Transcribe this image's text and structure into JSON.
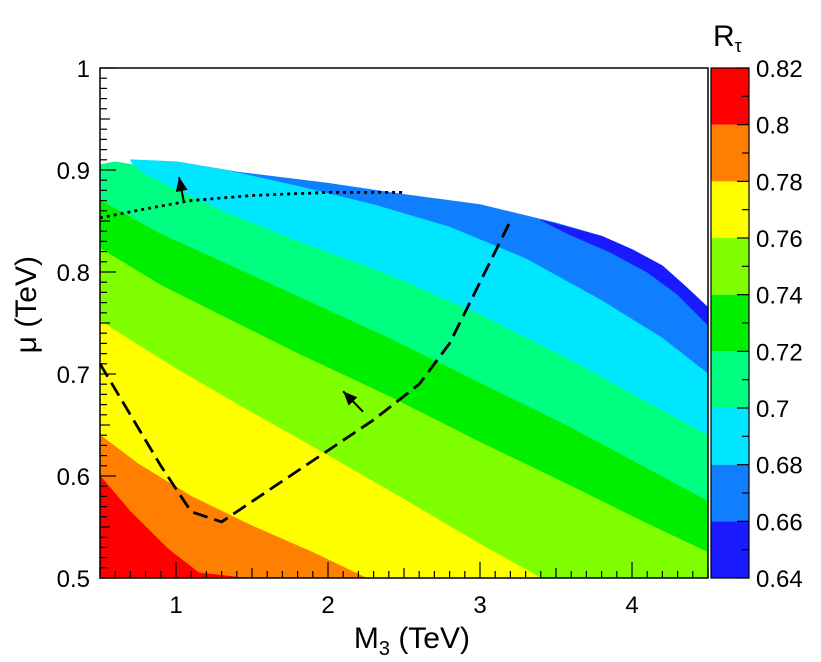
{
  "chart_data": {
    "type": "heatmap",
    "title": "",
    "xlabel": {
      "main": "M",
      "sub": "3",
      "unit": " (TeV)"
    },
    "ylabel": {
      "main": "μ",
      "unit": " (TeV)"
    },
    "colorbar_label": {
      "main": "R",
      "sub": "τ"
    },
    "xlim": [
      0.5,
      4.5
    ],
    "ylim": [
      0.5,
      1.0
    ],
    "x_ticks": [
      {
        "value": 1,
        "label": "1"
      },
      {
        "value": 2,
        "label": "2"
      },
      {
        "value": 3,
        "label": "3"
      },
      {
        "value": 4,
        "label": "4"
      }
    ],
    "y_ticks": [
      {
        "value": 0.5,
        "label": "0.5"
      },
      {
        "value": 0.6,
        "label": "0.6"
      },
      {
        "value": 0.7,
        "label": "0.7"
      },
      {
        "value": 0.8,
        "label": "0.8"
      },
      {
        "value": 0.9,
        "label": "0.9"
      },
      {
        "value": 1.0,
        "label": "1"
      }
    ],
    "colorbar": {
      "range": [
        0.64,
        0.82
      ],
      "tick_labels": [
        "0.82",
        "0.8",
        "0.78",
        "0.76",
        "0.74",
        "0.72",
        "0.7",
        "0.68",
        "0.66",
        "0.64"
      ],
      "bands": [
        {
          "from": 0.64,
          "to": 0.66,
          "color": "#1a1aff"
        },
        {
          "from": 0.66,
          "to": 0.68,
          "color": "#0f7fff"
        },
        {
          "from": 0.68,
          "to": 0.7,
          "color": "#00e6ff"
        },
        {
          "from": 0.7,
          "to": 0.72,
          "color": "#00ff80"
        },
        {
          "from": 0.72,
          "to": 0.74,
          "color": "#00ee00"
        },
        {
          "from": 0.74,
          "to": 0.76,
          "color": "#80ff00"
        },
        {
          "from": 0.76,
          "to": 0.78,
          "color": "#ffff00"
        },
        {
          "from": 0.78,
          "to": 0.8,
          "color": "#ff8000"
        },
        {
          "from": 0.8,
          "to": 0.82,
          "color": "#ff0000"
        }
      ]
    },
    "allowed_region_upper_edge": [
      {
        "x": 0.5,
        "y": 0.905
      },
      {
        "x": 0.8,
        "y": 0.91
      },
      {
        "x": 1.0,
        "y": 0.908
      },
      {
        "x": 1.5,
        "y": 0.897
      },
      {
        "x": 2.0,
        "y": 0.887
      },
      {
        "x": 2.5,
        "y": 0.876
      },
      {
        "x": 3.0,
        "y": 0.865
      },
      {
        "x": 3.5,
        "y": 0.848
      },
      {
        "x": 3.8,
        "y": 0.835
      },
      {
        "x": 4.0,
        "y": 0.822
      },
      {
        "x": 4.2,
        "y": 0.805
      },
      {
        "x": 4.35,
        "y": 0.786
      },
      {
        "x": 4.5,
        "y": 0.762
      }
    ],
    "contour_bands": [
      {
        "color": "#0f7fff",
        "points": [
          {
            "x": 1.0,
            "y": 0.908
          },
          {
            "x": 1.4,
            "y": 0.898
          },
          {
            "x": 2.0,
            "y": 0.887
          },
          {
            "x": 2.5,
            "y": 0.876
          },
          {
            "x": 3.0,
            "y": 0.866
          },
          {
            "x": 3.5,
            "y": 0.848
          },
          {
            "x": 3.8,
            "y": 0.835
          },
          {
            "x": 4.0,
            "y": 0.822
          },
          {
            "x": 4.2,
            "y": 0.806
          },
          {
            "x": 4.35,
            "y": 0.786
          },
          {
            "x": 4.5,
            "y": 0.765
          },
          {
            "x": 4.5,
            "y": 0.7
          },
          {
            "x": 4.2,
            "y": 0.735
          },
          {
            "x": 3.8,
            "y": 0.772
          },
          {
            "x": 3.3,
            "y": 0.813
          },
          {
            "x": 2.8,
            "y": 0.844
          },
          {
            "x": 2.3,
            "y": 0.866
          },
          {
            "x": 1.8,
            "y": 0.884
          },
          {
            "x": 1.35,
            "y": 0.899
          }
        ]
      },
      {
        "color": "#00e6ff",
        "points": [
          {
            "x": 0.7,
            "y": 0.91
          },
          {
            "x": 1.0,
            "y": 0.908
          },
          {
            "x": 1.35,
            "y": 0.899
          },
          {
            "x": 1.8,
            "y": 0.884
          },
          {
            "x": 2.3,
            "y": 0.866
          },
          {
            "x": 2.8,
            "y": 0.844
          },
          {
            "x": 3.3,
            "y": 0.813
          },
          {
            "x": 3.8,
            "y": 0.772
          },
          {
            "x": 4.2,
            "y": 0.735
          },
          {
            "x": 4.5,
            "y": 0.7
          },
          {
            "x": 4.5,
            "y": 0.64
          },
          {
            "x": 4.1,
            "y": 0.672
          },
          {
            "x": 3.6,
            "y": 0.713
          },
          {
            "x": 3.0,
            "y": 0.758
          },
          {
            "x": 2.4,
            "y": 0.797
          },
          {
            "x": 1.8,
            "y": 0.83
          },
          {
            "x": 1.3,
            "y": 0.86
          },
          {
            "x": 0.95,
            "y": 0.884
          },
          {
            "x": 0.78,
            "y": 0.897
          },
          {
            "x": 0.72,
            "y": 0.905
          }
        ]
      },
      {
        "color": "#00ff80",
        "points": [
          {
            "x": 0.5,
            "y": 0.905
          },
          {
            "x": 0.6,
            "y": 0.908
          },
          {
            "x": 0.72,
            "y": 0.905
          },
          {
            "x": 0.78,
            "y": 0.897
          },
          {
            "x": 0.95,
            "y": 0.884
          },
          {
            "x": 1.3,
            "y": 0.86
          },
          {
            "x": 1.8,
            "y": 0.83
          },
          {
            "x": 2.4,
            "y": 0.797
          },
          {
            "x": 3.0,
            "y": 0.758
          },
          {
            "x": 3.6,
            "y": 0.713
          },
          {
            "x": 4.1,
            "y": 0.672
          },
          {
            "x": 4.5,
            "y": 0.64
          },
          {
            "x": 4.5,
            "y": 0.575
          },
          {
            "x": 4.1,
            "y": 0.607
          },
          {
            "x": 3.6,
            "y": 0.647
          },
          {
            "x": 3.0,
            "y": 0.691
          },
          {
            "x": 2.4,
            "y": 0.735
          },
          {
            "x": 1.8,
            "y": 0.776
          },
          {
            "x": 1.3,
            "y": 0.81
          },
          {
            "x": 0.9,
            "y": 0.837
          },
          {
            "x": 0.6,
            "y": 0.862
          },
          {
            "x": 0.5,
            "y": 0.87
          }
        ]
      },
      {
        "color": "#00ee00",
        "points": [
          {
            "x": 0.5,
            "y": 0.87
          },
          {
            "x": 0.6,
            "y": 0.862
          },
          {
            "x": 0.9,
            "y": 0.837
          },
          {
            "x": 1.3,
            "y": 0.81
          },
          {
            "x": 1.8,
            "y": 0.776
          },
          {
            "x": 2.4,
            "y": 0.735
          },
          {
            "x": 3.0,
            "y": 0.691
          },
          {
            "x": 3.6,
            "y": 0.647
          },
          {
            "x": 4.1,
            "y": 0.607
          },
          {
            "x": 4.5,
            "y": 0.575
          },
          {
            "x": 4.5,
            "y": 0.525
          },
          {
            "x": 4.1,
            "y": 0.553
          },
          {
            "x": 3.6,
            "y": 0.59
          },
          {
            "x": 3.0,
            "y": 0.633
          },
          {
            "x": 2.4,
            "y": 0.678
          },
          {
            "x": 1.8,
            "y": 0.72
          },
          {
            "x": 1.3,
            "y": 0.757
          },
          {
            "x": 0.9,
            "y": 0.787
          },
          {
            "x": 0.5,
            "y": 0.823
          }
        ]
      },
      {
        "color": "#80ff00",
        "points": [
          {
            "x": 0.5,
            "y": 0.823
          },
          {
            "x": 0.9,
            "y": 0.787
          },
          {
            "x": 1.3,
            "y": 0.757
          },
          {
            "x": 1.8,
            "y": 0.72
          },
          {
            "x": 2.4,
            "y": 0.678
          },
          {
            "x": 3.0,
            "y": 0.633
          },
          {
            "x": 3.6,
            "y": 0.59
          },
          {
            "x": 4.1,
            "y": 0.553
          },
          {
            "x": 4.5,
            "y": 0.525
          },
          {
            "x": 4.5,
            "y": 0.5
          },
          {
            "x": 3.4,
            "y": 0.5
          },
          {
            "x": 3.0,
            "y": 0.533
          },
          {
            "x": 2.5,
            "y": 0.577
          },
          {
            "x": 2.0,
            "y": 0.62
          },
          {
            "x": 1.5,
            "y": 0.662
          },
          {
            "x": 1.0,
            "y": 0.705
          },
          {
            "x": 0.7,
            "y": 0.733
          },
          {
            "x": 0.5,
            "y": 0.752
          }
        ]
      },
      {
        "color": "#ffff00",
        "points": [
          {
            "x": 0.5,
            "y": 0.752
          },
          {
            "x": 0.7,
            "y": 0.733
          },
          {
            "x": 1.0,
            "y": 0.705
          },
          {
            "x": 1.5,
            "y": 0.662
          },
          {
            "x": 2.0,
            "y": 0.62
          },
          {
            "x": 2.5,
            "y": 0.577
          },
          {
            "x": 3.0,
            "y": 0.533
          },
          {
            "x": 3.4,
            "y": 0.5
          },
          {
            "x": 2.25,
            "y": 0.5
          },
          {
            "x": 1.9,
            "y": 0.525
          },
          {
            "x": 1.5,
            "y": 0.551
          },
          {
            "x": 1.1,
            "y": 0.58
          },
          {
            "x": 0.75,
            "y": 0.612
          },
          {
            "x": 0.5,
            "y": 0.64
          }
        ]
      },
      {
        "color": "#ff8000",
        "points": [
          {
            "x": 0.5,
            "y": 0.64
          },
          {
            "x": 0.75,
            "y": 0.612
          },
          {
            "x": 1.1,
            "y": 0.58
          },
          {
            "x": 1.5,
            "y": 0.551
          },
          {
            "x": 1.9,
            "y": 0.525
          },
          {
            "x": 2.25,
            "y": 0.5
          },
          {
            "x": 1.45,
            "y": 0.5
          },
          {
            "x": 1.15,
            "y": 0.505
          },
          {
            "x": 0.95,
            "y": 0.528
          },
          {
            "x": 0.7,
            "y": 0.565
          },
          {
            "x": 0.5,
            "y": 0.6
          }
        ]
      },
      {
        "color": "#ff0000",
        "points": [
          {
            "x": 0.5,
            "y": 0.6
          },
          {
            "x": 0.7,
            "y": 0.565
          },
          {
            "x": 0.95,
            "y": 0.528
          },
          {
            "x": 1.15,
            "y": 0.505
          },
          {
            "x": 1.45,
            "y": 0.5
          },
          {
            "x": 0.5,
            "y": 0.5
          }
        ]
      }
    ],
    "top_right_dark_strip": [
      {
        "x": 3.4,
        "y": 0.851
      },
      {
        "x": 3.8,
        "y": 0.835
      },
      {
        "x": 4.0,
        "y": 0.822
      },
      {
        "x": 4.2,
        "y": 0.806
      },
      {
        "x": 4.35,
        "y": 0.786
      },
      {
        "x": 4.5,
        "y": 0.765
      },
      {
        "x": 4.5,
        "y": 0.748
      },
      {
        "x": 4.3,
        "y": 0.778
      },
      {
        "x": 4.1,
        "y": 0.8
      },
      {
        "x": 3.85,
        "y": 0.82
      },
      {
        "x": 3.6,
        "y": 0.836
      }
    ],
    "curves": [
      {
        "name": "dotted",
        "style": "dotted",
        "points": [
          {
            "x": 0.5,
            "y": 0.853
          },
          {
            "x": 0.8,
            "y": 0.862
          },
          {
            "x": 1.1,
            "y": 0.87
          },
          {
            "x": 1.5,
            "y": 0.875
          },
          {
            "x": 2.0,
            "y": 0.878
          },
          {
            "x": 2.5,
            "y": 0.878
          }
        ]
      },
      {
        "name": "dashed",
        "style": "dashed",
        "points": [
          {
            "x": 0.5,
            "y": 0.71
          },
          {
            "x": 0.7,
            "y": 0.66
          },
          {
            "x": 0.9,
            "y": 0.61
          },
          {
            "x": 1.1,
            "y": 0.565
          },
          {
            "x": 1.3,
            "y": 0.555
          },
          {
            "x": 1.6,
            "y": 0.585
          },
          {
            "x": 2.0,
            "y": 0.625
          },
          {
            "x": 2.3,
            "y": 0.655
          },
          {
            "x": 2.6,
            "y": 0.69
          },
          {
            "x": 2.8,
            "y": 0.73
          },
          {
            "x": 3.0,
            "y": 0.79
          },
          {
            "x": 3.2,
            "y": 0.85
          }
        ]
      }
    ],
    "arrows": [
      {
        "on": "dotted",
        "from": {
          "x": 1.05,
          "y": 0.87
        },
        "to": {
          "x": 1.02,
          "y": 0.893
        }
      },
      {
        "on": "dashed",
        "from": {
          "x": 2.23,
          "y": 0.663
        },
        "to": {
          "x": 2.1,
          "y": 0.683
        }
      }
    ]
  }
}
